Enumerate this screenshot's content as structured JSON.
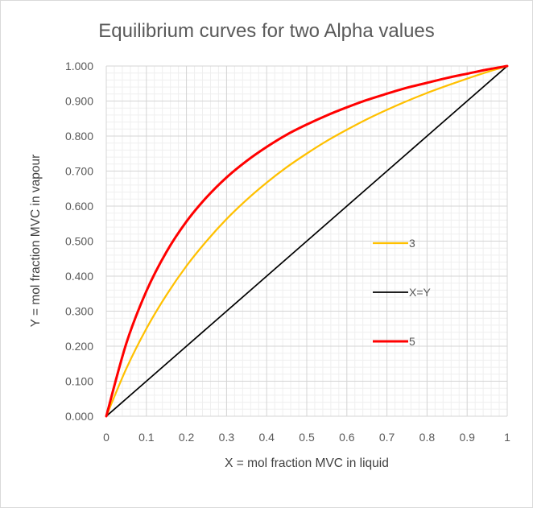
{
  "chart_data": {
    "type": "line",
    "title": "Equilibrium curves for two Alpha values",
    "xlabel": "X = mol fraction MVC in liquid",
    "ylabel": "Y = mol fraction MVC in vapour",
    "xlim": [
      0,
      1
    ],
    "ylim": [
      0,
      1
    ],
    "x_ticks": [
      "0",
      "0.1",
      "0.2",
      "0.3",
      "0.4",
      "0.5",
      "0.6",
      "0.7",
      "0.8",
      "0.9",
      "1"
    ],
    "y_ticks": [
      "0.000",
      "0.100",
      "0.200",
      "0.300",
      "0.400",
      "0.500",
      "0.600",
      "0.700",
      "0.800",
      "0.900",
      "1.000"
    ],
    "grid": true,
    "legend_position": "right-middle",
    "x": [
      0,
      0.05,
      0.1,
      0.15,
      0.2,
      0.25,
      0.3,
      0.35,
      0.4,
      0.45,
      0.5,
      0.55,
      0.6,
      0.65,
      0.7,
      0.75,
      0.8,
      0.85,
      0.9,
      0.95,
      1
    ],
    "series": [
      {
        "name": "3",
        "color": "#FFC000",
        "values": [
          0,
          0.136,
          0.25,
          0.346,
          0.429,
          0.5,
          0.563,
          0.618,
          0.667,
          0.711,
          0.75,
          0.786,
          0.818,
          0.848,
          0.875,
          0.9,
          0.923,
          0.944,
          0.964,
          0.983,
          1
        ]
      },
      {
        "name": "X=Y",
        "color": "#000000",
        "values": [
          0,
          0.05,
          0.1,
          0.15,
          0.2,
          0.25,
          0.3,
          0.35,
          0.4,
          0.45,
          0.5,
          0.55,
          0.6,
          0.65,
          0.7,
          0.75,
          0.8,
          0.85,
          0.9,
          0.95,
          1
        ]
      },
      {
        "name": "5",
        "color": "#FF0000",
        "values": [
          0,
          0.208,
          0.357,
          0.469,
          0.556,
          0.625,
          0.682,
          0.729,
          0.769,
          0.804,
          0.833,
          0.859,
          0.882,
          0.903,
          0.921,
          0.938,
          0.952,
          0.966,
          0.978,
          0.99,
          1
        ]
      }
    ]
  }
}
